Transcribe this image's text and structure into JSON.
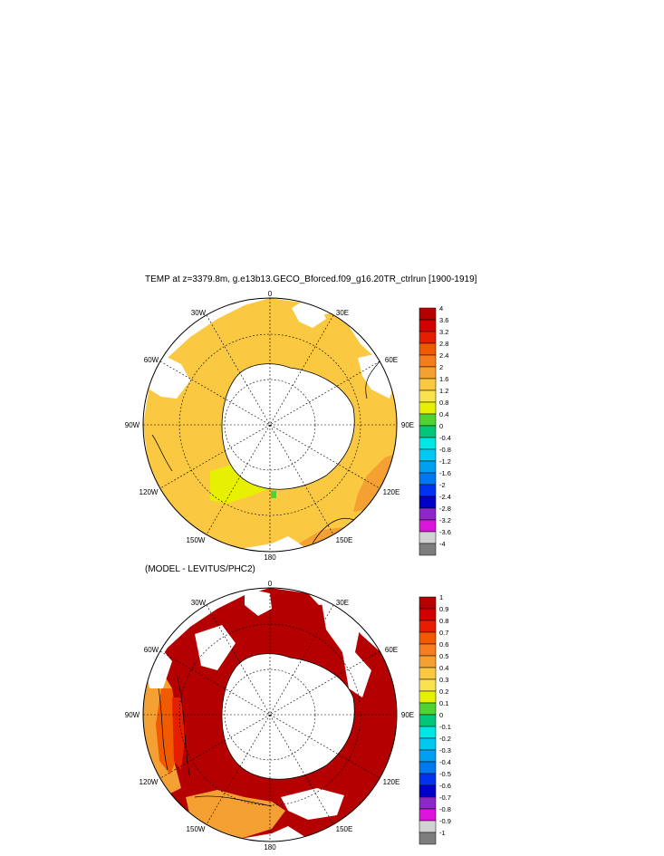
{
  "panels": [
    {
      "title": "TEMP at z=3379.8m, g.e13b13.GECO_Bforced.f09_g16.20TR_ctrlrun [1900-1919]",
      "lon_labels": {
        "n": "0",
        "ne": "30E",
        "e1": "60E",
        "e": "90E",
        "se1": "120E",
        "se": "150E",
        "s": "180",
        "sw": "150W",
        "sw1": "120W",
        "w": "90W",
        "nw1": "60W",
        "nw": "30W"
      },
      "colorbar": {
        "labels": [
          "4",
          "3.6",
          "3.2",
          "2.8",
          "2.4",
          "2",
          "1.6",
          "1.2",
          "0.8",
          "0.4",
          "0",
          "-0.4",
          "-0.8",
          "-1.2",
          "-1.6",
          "-2",
          "-2.4",
          "-2.8",
          "-3.2",
          "-3.6",
          "-4"
        ],
        "colors": [
          "#b40000",
          "#d20000",
          "#e61e00",
          "#f05a00",
          "#f57d1e",
          "#f5a032",
          "#fac841",
          "#fae150",
          "#e6f000",
          "#50d232",
          "#00c878",
          "#00e6e6",
          "#00c8f0",
          "#00a0f0",
          "#0078f0",
          "#0032f0",
          "#0000c8",
          "#8c28c8",
          "#dc14dc",
          "#d2d2d2",
          "#7d7d7d"
        ]
      }
    },
    {
      "title": "(MODEL - LEVITUS/PHC2)",
      "lon_labels": {
        "n": "0",
        "ne": "30E",
        "e1": "60E",
        "e": "90E",
        "se1": "120E",
        "se": "150E",
        "s": "180",
        "sw": "150W",
        "sw1": "120W",
        "w": "90W",
        "nw1": "60W",
        "nw": "30W"
      },
      "colorbar": {
        "labels": [
          "1",
          "0.9",
          "0.8",
          "0.7",
          "0.6",
          "0.5",
          "0.4",
          "0.3",
          "0.2",
          "0.1",
          "0",
          "-0.1",
          "-0.2",
          "-0.3",
          "-0.4",
          "-0.5",
          "-0.6",
          "-0.7",
          "-0.8",
          "-0.9",
          "-1"
        ],
        "colors": [
          "#b40000",
          "#d20000",
          "#e61e00",
          "#f05a00",
          "#f57d1e",
          "#f5a032",
          "#fac841",
          "#fae150",
          "#e6f000",
          "#50d232",
          "#00c878",
          "#00e6e6",
          "#00c8f0",
          "#00a0f0",
          "#0078f0",
          "#0032f0",
          "#0000c8",
          "#8c28c8",
          "#dc14dc",
          "#d2d2d2",
          "#7d7d7d"
        ]
      }
    }
  ]
}
